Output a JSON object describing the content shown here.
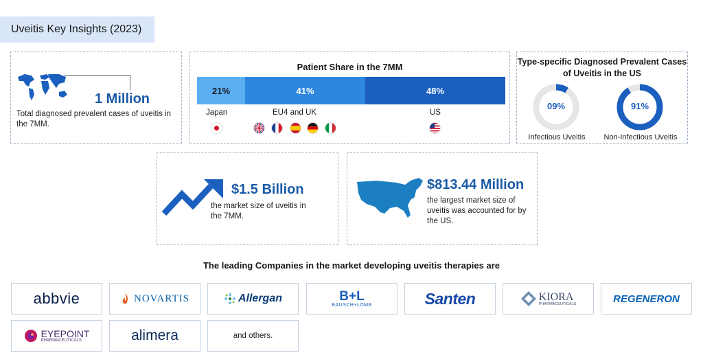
{
  "header": {
    "title": "Uveitis Key Insights (2023)"
  },
  "prevalence": {
    "value": "1 Million",
    "description": "Total diagnosed prevalent cases of uveitis in the 7MM."
  },
  "patient_share": {
    "title": "Patient Share in the 7MM",
    "segments": [
      {
        "region": "Japan",
        "value": "21%"
      },
      {
        "region": "EU4 and UK",
        "value": "41%"
      },
      {
        "region": "US",
        "value": "48%"
      }
    ]
  },
  "type_specific": {
    "title": "Type-specific Diagnosed Prevalent Cases of Uveitis in the US",
    "items": [
      {
        "value": "09%",
        "fraction": 0.09,
        "label": "Infectious Uveitis"
      },
      {
        "value": "91%",
        "fraction": 0.91,
        "label": "Non-Infectious Uveitis"
      }
    ]
  },
  "market": {
    "value": "$1.5 Billion",
    "description": "the market size of uveitis in the 7MM."
  },
  "us_market": {
    "value": "$813.44 Million",
    "description": "the largest market size of uveitis was accounted for by the US."
  },
  "companies": {
    "heading": "The leading Companies in the market developing uveitis therapies are",
    "logos": [
      "abbvie",
      "NOVARTIS",
      "Allergan",
      "B+L",
      "BAUSCH+LOMB",
      "Santen",
      "KIORA",
      "PHARMACEUTICALS",
      "REGENERON",
      "EYEPOINT",
      "PHARMACEUTICALS",
      "alimera",
      "and others."
    ]
  },
  "colors": {
    "accent": "#1a5aa6",
    "bar_light": "#5aaef2",
    "bar_mid": "#2e86de",
    "bar_dark": "#1b5fbf"
  }
}
